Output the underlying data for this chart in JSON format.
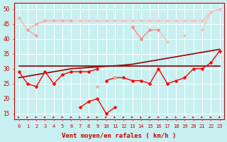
{
  "x": [
    0,
    1,
    2,
    3,
    4,
    5,
    6,
    7,
    8,
    9,
    10,
    11,
    12,
    13,
    14,
    15,
    16,
    17,
    18,
    19,
    20,
    21,
    22,
    23
  ],
  "background_color": "#c8f0f0",
  "grid_color": "#ffffff",
  "xlabel": "Vent moyen/en rafales ( km/h )",
  "ylim": [
    13,
    52
  ],
  "yticks": [
    15,
    20,
    25,
    30,
    35,
    40,
    45,
    50
  ],
  "series": [
    {
      "name": "light_pink_upper",
      "color": "#ffaaaa",
      "linewidth": 0.9,
      "marker": "o",
      "markersize": 2.5,
      "y": [
        47,
        null,
        null,
        null,
        null,
        null,
        null,
        null,
        null,
        null,
        null,
        null,
        null,
        null,
        null,
        null,
        null,
        null,
        null,
        null,
        null,
        null,
        null,
        null
      ]
    },
    {
      "name": "light_pink_top_band",
      "color": "#ffbbbb",
      "linewidth": 0.9,
      "marker": "o",
      "markersize": 2.5,
      "y": [
        null,
        null,
        45,
        46,
        46,
        46,
        46,
        46,
        46,
        46,
        46,
        46,
        46,
        46,
        46,
        46,
        46,
        46,
        46,
        46,
        46,
        46,
        49,
        50
      ]
    },
    {
      "name": "light_pink_curve1",
      "color": "#ffaaaa",
      "linewidth": 0.9,
      "marker": "o",
      "markersize": 2.5,
      "y": [
        47,
        43,
        45,
        46,
        46,
        46,
        46,
        null,
        null,
        null,
        null,
        null,
        null,
        null,
        null,
        null,
        null,
        null,
        null,
        null,
        null,
        null,
        null,
        null
      ]
    },
    {
      "name": "light_pink_curve2",
      "color": "#ffbbbb",
      "linewidth": 0.9,
      "marker": "o",
      "markersize": 2.5,
      "y": [
        null,
        null,
        null,
        null,
        null,
        null,
        null,
        null,
        null,
        null,
        null,
        null,
        null,
        44,
        40,
        43,
        43,
        39,
        null,
        41,
        null,
        43,
        49,
        50
      ]
    },
    {
      "name": "medium_pink_upper",
      "color": "#ff9999",
      "linewidth": 0.9,
      "marker": "D",
      "markersize": 2.5,
      "y": [
        null,
        43,
        41,
        null,
        null,
        null,
        null,
        null,
        null,
        null,
        null,
        null,
        null,
        null,
        null,
        null,
        null,
        null,
        null,
        null,
        null,
        null,
        null,
        null
      ]
    },
    {
      "name": "medium_pink_main",
      "color": "#ff8888",
      "linewidth": 0.9,
      "marker": "D",
      "markersize": 2.5,
      "y": [
        null,
        null,
        null,
        null,
        null,
        null,
        null,
        null,
        null,
        null,
        null,
        null,
        null,
        44,
        40,
        43,
        43,
        null,
        null,
        null,
        null,
        null,
        null,
        null
      ]
    },
    {
      "name": "dark_red_flat",
      "color": "#880000",
      "linewidth": 1.2,
      "marker": null,
      "markersize": 0,
      "y": [
        31,
        31,
        31,
        31,
        31,
        31,
        31,
        31,
        31,
        31,
        31,
        31,
        31,
        31,
        31,
        31,
        31,
        31,
        31,
        31,
        31,
        31,
        31,
        31
      ]
    },
    {
      "name": "dark_red_rising",
      "color": "#990000",
      "linewidth": 1.2,
      "marker": null,
      "markersize": 0,
      "y": [
        27,
        27.5,
        28,
        28.5,
        29,
        29.5,
        30,
        30.2,
        30.4,
        30.6,
        30.8,
        31,
        31.2,
        31.5,
        32,
        32.5,
        33,
        33.5,
        34,
        34.5,
        35,
        35.5,
        36,
        36.5
      ]
    },
    {
      "name": "bright_red_lower",
      "color": "#ff0000",
      "linewidth": 1.0,
      "marker": "D",
      "markersize": 2.5,
      "y": [
        29,
        25,
        24,
        29,
        25,
        28,
        29,
        29,
        29,
        30,
        null,
        null,
        null,
        null,
        null,
        null,
        null,
        null,
        null,
        null,
        null,
        null,
        null,
        null
      ]
    },
    {
      "name": "bright_red_dip",
      "color": "#ff0000",
      "linewidth": 1.0,
      "marker": "D",
      "markersize": 2.5,
      "y": [
        null,
        null,
        null,
        null,
        null,
        null,
        null,
        17,
        19,
        20,
        15,
        17,
        null,
        null,
        null,
        null,
        null,
        null,
        null,
        null,
        null,
        null,
        null,
        null
      ]
    },
    {
      "name": "bright_red_right",
      "color": "#ff0000",
      "linewidth": 1.0,
      "marker": "D",
      "markersize": 2.5,
      "y": [
        null,
        null,
        null,
        null,
        null,
        null,
        null,
        null,
        null,
        null,
        26,
        27,
        27,
        26,
        26,
        25,
        30,
        25,
        26,
        27,
        30,
        30,
        32,
        36
      ]
    },
    {
      "name": "pink_lower_curve",
      "color": "#ffaaaa",
      "linewidth": 0.9,
      "marker": "D",
      "markersize": 2.5,
      "y": [
        null,
        null,
        null,
        null,
        null,
        null,
        null,
        null,
        null,
        24,
        null,
        27,
        null,
        null,
        null,
        null,
        null,
        null,
        null,
        null,
        null,
        null,
        null,
        null
      ]
    }
  ]
}
